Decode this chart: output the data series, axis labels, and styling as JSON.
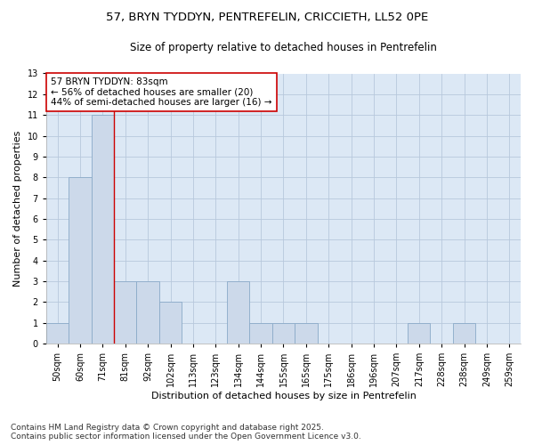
{
  "title1": "57, BRYN TYDDYN, PENTREFELIN, CRICCIETH, LL52 0PE",
  "title2": "Size of property relative to detached houses in Pentrefelin",
  "xlabel": "Distribution of detached houses by size in Pentrefelin",
  "ylabel": "Number of detached properties",
  "categories": [
    "50sqm",
    "60sqm",
    "71sqm",
    "81sqm",
    "92sqm",
    "102sqm",
    "113sqm",
    "123sqm",
    "134sqm",
    "144sqm",
    "155sqm",
    "165sqm",
    "175sqm",
    "186sqm",
    "196sqm",
    "207sqm",
    "217sqm",
    "228sqm",
    "238sqm",
    "249sqm",
    "259sqm"
  ],
  "values": [
    1,
    8,
    11,
    3,
    3,
    2,
    0,
    0,
    3,
    1,
    1,
    1,
    0,
    0,
    0,
    0,
    1,
    0,
    1,
    0,
    0
  ],
  "bar_color": "#ccd9ea",
  "bar_edge_color": "#8aaac8",
  "reference_line_x": 3,
  "reference_line_color": "#cc0000",
  "annotation_text": "57 BRYN TYDDYN: 83sqm\n← 56% of detached houses are smaller (20)\n44% of semi-detached houses are larger (16) →",
  "annotation_box_color": "#ffffff",
  "annotation_box_edge_color": "#cc0000",
  "ylim": [
    0,
    13
  ],
  "yticks": [
    0,
    1,
    2,
    3,
    4,
    5,
    6,
    7,
    8,
    9,
    10,
    11,
    12,
    13
  ],
  "grid_color": "#b8c8dc",
  "background_color": "#ffffff",
  "plot_bg_color": "#dce8f5",
  "footer": "Contains HM Land Registry data © Crown copyright and database right 2025.\nContains public sector information licensed under the Open Government Licence v3.0.",
  "title_fontsize": 9.5,
  "subtitle_fontsize": 8.5,
  "axis_label_fontsize": 8,
  "tick_fontsize": 7,
  "annotation_fontsize": 7.5,
  "footer_fontsize": 6.5
}
